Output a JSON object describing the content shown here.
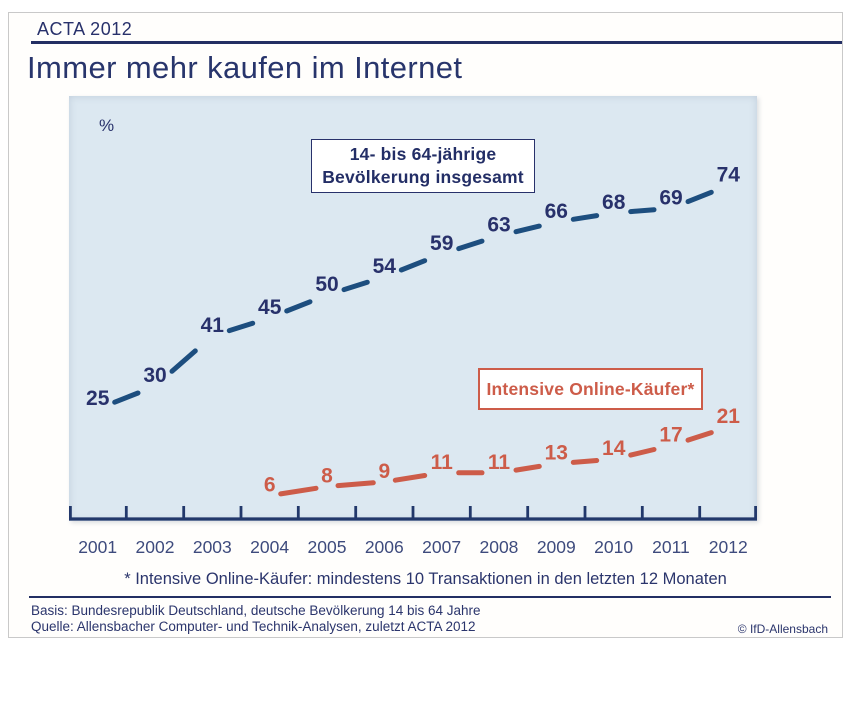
{
  "header": {
    "tag": "ACTA 2012",
    "title": "Immer mehr kaufen im Internet"
  },
  "chart_data": {
    "type": "line",
    "title": "Immer mehr kaufen im Internet",
    "unit": "%",
    "categories": [
      "2001",
      "2002",
      "2003",
      "2004",
      "2005",
      "2006",
      "2007",
      "2008",
      "2009",
      "2010",
      "2011",
      "2012"
    ],
    "ylim": [
      0,
      90
    ],
    "grid": false,
    "legend_position": "inside-boxes",
    "colors": {
      "axis": "#22386b",
      "plot_bg": "#dce8f1",
      "navy_text": "#2b356c"
    },
    "series": [
      {
        "name": "14- bis 64-jährige Bevölkerung insgesamt",
        "legend_lines": [
          "14- bis 64-jährige",
          "Bevölkerung insgesamt"
        ],
        "color": "#1d4e7f",
        "label_color": "#28316b",
        "start_index": 0,
        "values": [
          25,
          30,
          41,
          45,
          50,
          54,
          59,
          63,
          66,
          68,
          69,
          74
        ]
      },
      {
        "name": "Intensive Online-Käufer*",
        "legend_lines": [
          "Intensive Online-Käufer*"
        ],
        "color": "#cd5c49",
        "label_color": "#cd5c49",
        "start_index": 3,
        "values": [
          6,
          8,
          9,
          11,
          11,
          13,
          14,
          17,
          21
        ]
      }
    ]
  },
  "footnote": "* Intensive Online-Käufer: mindestens 10 Transaktionen in den letzten 12 Monaten",
  "footer": {
    "basis": "Basis: Bundesrepublik Deutschland, deutsche Bevölkerung 14 bis 64 Jahre",
    "quelle": "Quelle: Allensbacher Computer- und Technik-Analysen, zuletzt ACTA 2012",
    "copyright": "© IfD-Allensbach"
  }
}
